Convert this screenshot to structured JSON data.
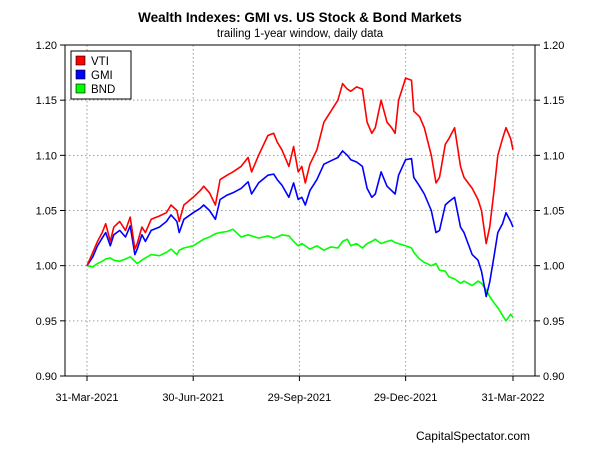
{
  "chart_data": {
    "type": "line",
    "title": "Wealth Indexes: GMI vs. US Stock & Bond Markets",
    "subtitle": "trailing 1-year window, daily data",
    "credit": "CapitalSpectator.com",
    "xlabel": "",
    "ylabel": "",
    "x_ticks": [
      "31-Mar-2021",
      "30-Jun-2021",
      "29-Sep-2021",
      "29-Dec-2021",
      "31-Mar-2022"
    ],
    "xlim": [
      "2021-03-31",
      "2022-03-31"
    ],
    "ylim": [
      0.9,
      1.2
    ],
    "y_ticks": [
      "0.90",
      "0.95",
      "1.00",
      "1.05",
      "1.10",
      "1.15",
      "1.20"
    ],
    "dual_y_axis": true,
    "grid": true,
    "legend_position": "top-left",
    "series": [
      {
        "name": "VTI",
        "color": "#ff0000",
        "points": [
          [
            "2021-03-31",
            1.0
          ],
          [
            "2021-04-05",
            1.012
          ],
          [
            "2021-04-09",
            1.022
          ],
          [
            "2021-04-13",
            1.03
          ],
          [
            "2021-04-16",
            1.038
          ],
          [
            "2021-04-20",
            1.022
          ],
          [
            "2021-04-23",
            1.035
          ],
          [
            "2021-04-28",
            1.04
          ],
          [
            "2021-05-03",
            1.032
          ],
          [
            "2021-05-07",
            1.044
          ],
          [
            "2021-05-11",
            1.015
          ],
          [
            "2021-05-13",
            1.02
          ],
          [
            "2021-05-17",
            1.035
          ],
          [
            "2021-05-20",
            1.03
          ],
          [
            "2021-05-25",
            1.042
          ],
          [
            "2021-06-01",
            1.045
          ],
          [
            "2021-06-07",
            1.048
          ],
          [
            "2021-06-11",
            1.055
          ],
          [
            "2021-06-16",
            1.05
          ],
          [
            "2021-06-18",
            1.04
          ],
          [
            "2021-06-22",
            1.055
          ],
          [
            "2021-06-30",
            1.062
          ],
          [
            "2021-07-06",
            1.068
          ],
          [
            "2021-07-09",
            1.072
          ],
          [
            "2021-07-14",
            1.066
          ],
          [
            "2021-07-19",
            1.055
          ],
          [
            "2021-07-23",
            1.078
          ],
          [
            "2021-07-29",
            1.082
          ],
          [
            "2021-08-03",
            1.085
          ],
          [
            "2021-08-10",
            1.09
          ],
          [
            "2021-08-16",
            1.098
          ],
          [
            "2021-08-19",
            1.085
          ],
          [
            "2021-08-25",
            1.1
          ],
          [
            "2021-09-02",
            1.118
          ],
          [
            "2021-09-07",
            1.12
          ],
          [
            "2021-09-10",
            1.112
          ],
          [
            "2021-09-14",
            1.105
          ],
          [
            "2021-09-20",
            1.09
          ],
          [
            "2021-09-24",
            1.108
          ],
          [
            "2021-09-28",
            1.085
          ],
          [
            "2021-10-01",
            1.09
          ],
          [
            "2021-10-04",
            1.075
          ],
          [
            "2021-10-08",
            1.092
          ],
          [
            "2021-10-14",
            1.105
          ],
          [
            "2021-10-20",
            1.13
          ],
          [
            "2021-10-26",
            1.14
          ],
          [
            "2021-11-01",
            1.15
          ],
          [
            "2021-11-05",
            1.165
          ],
          [
            "2021-11-09",
            1.16
          ],
          [
            "2021-11-12",
            1.158
          ],
          [
            "2021-11-17",
            1.162
          ],
          [
            "2021-11-22",
            1.16
          ],
          [
            "2021-11-26",
            1.13
          ],
          [
            "2021-11-30",
            1.12
          ],
          [
            "2021-12-03",
            1.125
          ],
          [
            "2021-12-08",
            1.15
          ],
          [
            "2021-12-13",
            1.13
          ],
          [
            "2021-12-17",
            1.125
          ],
          [
            "2021-12-20",
            1.12
          ],
          [
            "2021-12-23",
            1.15
          ],
          [
            "2021-12-29",
            1.17
          ],
          [
            "2022-01-03",
            1.168
          ],
          [
            "2022-01-05",
            1.14
          ],
          [
            "2022-01-10",
            1.135
          ],
          [
            "2022-01-14",
            1.125
          ],
          [
            "2022-01-20",
            1.1
          ],
          [
            "2022-01-24",
            1.075
          ],
          [
            "2022-01-27",
            1.08
          ],
          [
            "2022-02-01",
            1.11
          ],
          [
            "2022-02-04",
            1.115
          ],
          [
            "2022-02-09",
            1.125
          ],
          [
            "2022-02-14",
            1.09
          ],
          [
            "2022-02-17",
            1.08
          ],
          [
            "2022-02-24",
            1.07
          ],
          [
            "2022-03-01",
            1.06
          ],
          [
            "2022-03-04",
            1.05
          ],
          [
            "2022-03-08",
            1.02
          ],
          [
            "2022-03-11",
            1.035
          ],
          [
            "2022-03-15",
            1.07
          ],
          [
            "2022-03-18",
            1.1
          ],
          [
            "2022-03-22",
            1.115
          ],
          [
            "2022-03-25",
            1.125
          ],
          [
            "2022-03-29",
            1.115
          ],
          [
            "2022-03-31",
            1.105
          ]
        ]
      },
      {
        "name": "GMI",
        "color": "#0000ff",
        "points": [
          [
            "2021-03-31",
            1.0
          ],
          [
            "2021-04-05",
            1.008
          ],
          [
            "2021-04-09",
            1.018
          ],
          [
            "2021-04-13",
            1.025
          ],
          [
            "2021-04-16",
            1.03
          ],
          [
            "2021-04-20",
            1.018
          ],
          [
            "2021-04-23",
            1.028
          ],
          [
            "2021-04-28",
            1.032
          ],
          [
            "2021-05-03",
            1.026
          ],
          [
            "2021-05-07",
            1.036
          ],
          [
            "2021-05-11",
            1.01
          ],
          [
            "2021-05-13",
            1.015
          ],
          [
            "2021-05-17",
            1.028
          ],
          [
            "2021-05-20",
            1.022
          ],
          [
            "2021-05-25",
            1.032
          ],
          [
            "2021-06-01",
            1.035
          ],
          [
            "2021-06-07",
            1.04
          ],
          [
            "2021-06-11",
            1.046
          ],
          [
            "2021-06-16",
            1.04
          ],
          [
            "2021-06-18",
            1.03
          ],
          [
            "2021-06-22",
            1.042
          ],
          [
            "2021-06-30",
            1.048
          ],
          [
            "2021-07-06",
            1.052
          ],
          [
            "2021-07-09",
            1.055
          ],
          [
            "2021-07-14",
            1.05
          ],
          [
            "2021-07-19",
            1.042
          ],
          [
            "2021-07-23",
            1.06
          ],
          [
            "2021-07-29",
            1.064
          ],
          [
            "2021-08-03",
            1.066
          ],
          [
            "2021-08-10",
            1.07
          ],
          [
            "2021-08-16",
            1.076
          ],
          [
            "2021-08-19",
            1.065
          ],
          [
            "2021-08-25",
            1.075
          ],
          [
            "2021-09-02",
            1.082
          ],
          [
            "2021-09-07",
            1.083
          ],
          [
            "2021-09-10",
            1.078
          ],
          [
            "2021-09-14",
            1.073
          ],
          [
            "2021-09-20",
            1.062
          ],
          [
            "2021-09-24",
            1.075
          ],
          [
            "2021-09-28",
            1.06
          ],
          [
            "2021-10-01",
            1.062
          ],
          [
            "2021-10-04",
            1.055
          ],
          [
            "2021-10-08",
            1.068
          ],
          [
            "2021-10-14",
            1.078
          ],
          [
            "2021-10-20",
            1.092
          ],
          [
            "2021-10-26",
            1.095
          ],
          [
            "2021-11-01",
            1.098
          ],
          [
            "2021-11-05",
            1.104
          ],
          [
            "2021-11-09",
            1.1
          ],
          [
            "2021-11-12",
            1.096
          ],
          [
            "2021-11-17",
            1.094
          ],
          [
            "2021-11-22",
            1.09
          ],
          [
            "2021-11-26",
            1.07
          ],
          [
            "2021-11-30",
            1.062
          ],
          [
            "2021-12-03",
            1.065
          ],
          [
            "2021-12-08",
            1.085
          ],
          [
            "2021-12-13",
            1.072
          ],
          [
            "2021-12-17",
            1.068
          ],
          [
            "2021-12-20",
            1.065
          ],
          [
            "2021-12-23",
            1.082
          ],
          [
            "2021-12-29",
            1.096
          ],
          [
            "2022-01-03",
            1.097
          ],
          [
            "2022-01-05",
            1.08
          ],
          [
            "2022-01-10",
            1.072
          ],
          [
            "2022-01-14",
            1.065
          ],
          [
            "2022-01-20",
            1.05
          ],
          [
            "2022-01-24",
            1.03
          ],
          [
            "2022-01-27",
            1.032
          ],
          [
            "2022-02-01",
            1.055
          ],
          [
            "2022-02-04",
            1.058
          ],
          [
            "2022-02-09",
            1.062
          ],
          [
            "2022-02-14",
            1.035
          ],
          [
            "2022-02-17",
            1.03
          ],
          [
            "2022-02-24",
            1.01
          ],
          [
            "2022-03-01",
            1.005
          ],
          [
            "2022-03-04",
            0.995
          ],
          [
            "2022-03-08",
            0.972
          ],
          [
            "2022-03-11",
            0.985
          ],
          [
            "2022-03-15",
            1.01
          ],
          [
            "2022-03-18",
            1.03
          ],
          [
            "2022-03-22",
            1.038
          ],
          [
            "2022-03-25",
            1.048
          ],
          [
            "2022-03-29",
            1.04
          ],
          [
            "2022-03-31",
            1.035
          ]
        ]
      },
      {
        "name": "BND",
        "color": "#00ff00",
        "points": [
          [
            "2021-03-31",
            1.0
          ],
          [
            "2021-04-05",
            0.999
          ],
          [
            "2021-04-09",
            1.002
          ],
          [
            "2021-04-13",
            1.004
          ],
          [
            "2021-04-16",
            1.006
          ],
          [
            "2021-04-20",
            1.007
          ],
          [
            "2021-04-23",
            1.005
          ],
          [
            "2021-04-28",
            1.004
          ],
          [
            "2021-05-03",
            1.006
          ],
          [
            "2021-05-07",
            1.008
          ],
          [
            "2021-05-11",
            1.004
          ],
          [
            "2021-05-13",
            1.002
          ],
          [
            "2021-05-17",
            1.005
          ],
          [
            "2021-05-20",
            1.007
          ],
          [
            "2021-05-25",
            1.01
          ],
          [
            "2021-06-01",
            1.009
          ],
          [
            "2021-06-07",
            1.012
          ],
          [
            "2021-06-11",
            1.015
          ],
          [
            "2021-06-16",
            1.01
          ],
          [
            "2021-06-18",
            1.014
          ],
          [
            "2021-06-22",
            1.016
          ],
          [
            "2021-06-30",
            1.018
          ],
          [
            "2021-07-06",
            1.022
          ],
          [
            "2021-07-09",
            1.024
          ],
          [
            "2021-07-14",
            1.026
          ],
          [
            "2021-07-19",
            1.029
          ],
          [
            "2021-07-23",
            1.03
          ],
          [
            "2021-07-29",
            1.031
          ],
          [
            "2021-08-03",
            1.033
          ],
          [
            "2021-08-10",
            1.026
          ],
          [
            "2021-08-16",
            1.028
          ],
          [
            "2021-08-19",
            1.027
          ],
          [
            "2021-08-25",
            1.025
          ],
          [
            "2021-09-02",
            1.027
          ],
          [
            "2021-09-07",
            1.025
          ],
          [
            "2021-09-10",
            1.026
          ],
          [
            "2021-09-14",
            1.028
          ],
          [
            "2021-09-20",
            1.027
          ],
          [
            "2021-09-24",
            1.022
          ],
          [
            "2021-09-28",
            1.018
          ],
          [
            "2021-10-01",
            1.02
          ],
          [
            "2021-10-04",
            1.018
          ],
          [
            "2021-10-08",
            1.015
          ],
          [
            "2021-10-14",
            1.018
          ],
          [
            "2021-10-20",
            1.014
          ],
          [
            "2021-10-26",
            1.017
          ],
          [
            "2021-11-01",
            1.016
          ],
          [
            "2021-11-05",
            1.022
          ],
          [
            "2021-11-09",
            1.024
          ],
          [
            "2021-11-12",
            1.018
          ],
          [
            "2021-11-17",
            1.02
          ],
          [
            "2021-11-22",
            1.016
          ],
          [
            "2021-11-26",
            1.02
          ],
          [
            "2021-11-30",
            1.022
          ],
          [
            "2021-12-03",
            1.024
          ],
          [
            "2021-12-08",
            1.02
          ],
          [
            "2021-12-13",
            1.022
          ],
          [
            "2021-12-17",
            1.023
          ],
          [
            "2021-12-20",
            1.021
          ],
          [
            "2021-12-23",
            1.02
          ],
          [
            "2021-12-29",
            1.018
          ],
          [
            "2022-01-03",
            1.016
          ],
          [
            "2022-01-05",
            1.012
          ],
          [
            "2022-01-10",
            1.006
          ],
          [
            "2022-01-14",
            1.003
          ],
          [
            "2022-01-20",
            1.0
          ],
          [
            "2022-01-24",
            1.002
          ],
          [
            "2022-01-27",
            0.996
          ],
          [
            "2022-02-01",
            0.995
          ],
          [
            "2022-02-04",
            0.99
          ],
          [
            "2022-02-09",
            0.988
          ],
          [
            "2022-02-14",
            0.984
          ],
          [
            "2022-02-17",
            0.986
          ],
          [
            "2022-02-24",
            0.982
          ],
          [
            "2022-03-01",
            0.986
          ],
          [
            "2022-03-04",
            0.984
          ],
          [
            "2022-03-08",
            0.978
          ],
          [
            "2022-03-11",
            0.972
          ],
          [
            "2022-03-15",
            0.966
          ],
          [
            "2022-03-18",
            0.962
          ],
          [
            "2022-03-22",
            0.955
          ],
          [
            "2022-03-25",
            0.95
          ],
          [
            "2022-03-29",
            0.956
          ],
          [
            "2022-03-31",
            0.953
          ]
        ]
      }
    ]
  }
}
